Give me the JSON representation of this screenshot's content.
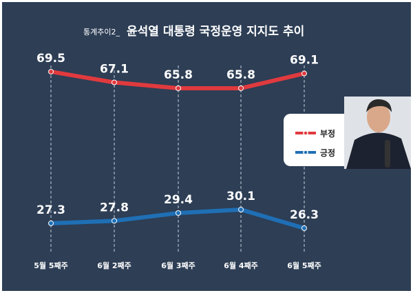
{
  "chart_data": {
    "type": "line",
    "title_prefix": "통계추이2_",
    "title": "윤석열 대통령 국정운영 지지도 추이",
    "categories": [
      "5월 5째주",
      "6월 2째주",
      "6월 3째주",
      "6월 4째주",
      "6월 5째주"
    ],
    "series": [
      {
        "name": "부정",
        "values": [
          69.5,
          67.1,
          65.8,
          65.8,
          69.1
        ],
        "color": "#e03a3e"
      },
      {
        "name": "긍정",
        "values": [
          27.3,
          27.8,
          29.4,
          30.1,
          26.3
        ],
        "color": "#1f6fb5"
      }
    ],
    "legend": "right",
    "grid": "vertical dashed"
  },
  "colors": {
    "background": "#2d3e55"
  }
}
